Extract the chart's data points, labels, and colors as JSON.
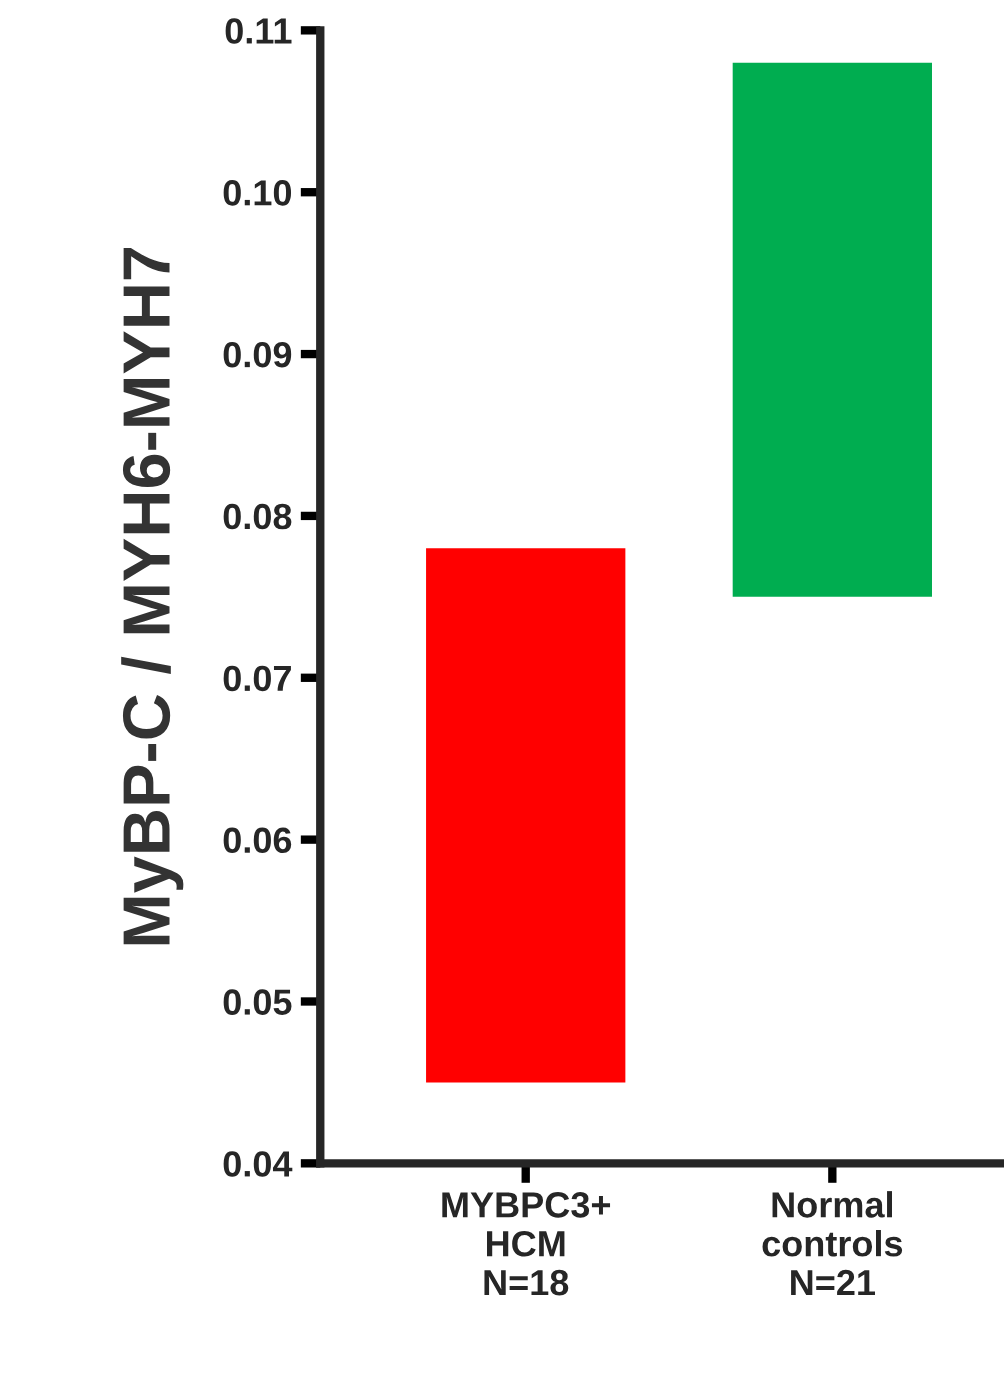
{
  "chart_data": {
    "type": "bar",
    "ylabel": "MyBP-C / MYH6-MYH7",
    "categories": [
      "MYBPC3+\nHCM\nN=18",
      "Normal\ncontrols\nN=21"
    ],
    "base": [
      0.045,
      0.075
    ],
    "values": [
      0.033,
      0.033
    ],
    "colors": [
      "#ff0000",
      "#00ad50"
    ],
    "ylim": [
      0.04,
      0.11
    ],
    "yticks": [
      0.04,
      0.05,
      0.06,
      0.07,
      0.08,
      0.09,
      {
        "value": 0.1,
        "label": "0.10"
      },
      0.11
    ],
    "grid": false
  }
}
